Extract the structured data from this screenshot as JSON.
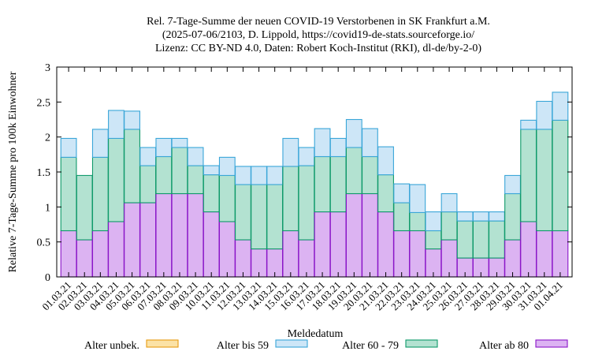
{
  "chart_data": {
    "type": "bar",
    "stacked": true,
    "title_lines": [
      "Rel. 7-Tage-Summe der neuen COVID-19 Verstorbenen in SK Frankfurt a.M.",
      "(2025-07-06/2103, D. Lippold, https://covid19-de-stats.sourceforge.io/",
      "Lizenz: CC BY-ND 4.0, Daten: Robert Koch-Institut (RKI), dl-de/by-2-0)"
    ],
    "xlabel": "Meldedatum",
    "ylabel": "Relative 7-Tage-Summe pro 100k Einwohner",
    "ylim": [
      0,
      3
    ],
    "yticks": [
      "0",
      "0.5",
      "1",
      "1.5",
      "2",
      "2.5",
      "3"
    ],
    "grid": false,
    "legend_position": "bottom",
    "categories": [
      "01.03.21",
      "02.03.21",
      "03.03.21",
      "04.03.21",
      "05.03.21",
      "06.03.21",
      "07.03.21",
      "08.03.21",
      "09.03.21",
      "10.03.21",
      "11.03.21",
      "12.03.21",
      "13.03.21",
      "14.03.21",
      "15.03.21",
      "16.03.21",
      "17.03.21",
      "18.03.21",
      "19.03.21",
      "20.03.21",
      "21.03.21",
      "22.03.21",
      "23.03.21",
      "24.03.21",
      "25.03.21",
      "26.03.21",
      "27.03.21",
      "28.03.21",
      "29.03.21",
      "30.03.21",
      "31.03.21",
      "01.04.21"
    ],
    "series": [
      {
        "name": "Alter ab 80",
        "fill": "#dcb3f2",
        "stroke": "#8a15c8",
        "values": [
          0.66,
          0.53,
          0.66,
          0.79,
          1.06,
          1.06,
          1.19,
          1.19,
          1.19,
          0.93,
          0.79,
          0.53,
          0.4,
          0.4,
          0.66,
          0.53,
          0.93,
          0.93,
          1.19,
          1.19,
          0.93,
          0.66,
          0.66,
          0.4,
          0.53,
          0.27,
          0.27,
          0.27,
          0.53,
          0.79,
          0.66,
          0.66
        ]
      },
      {
        "name": "Alter 60 - 79",
        "fill": "#b3e2d1",
        "stroke": "#0f9a6a",
        "values": [
          1.05,
          0.92,
          1.05,
          1.19,
          1.05,
          0.53,
          0.53,
          0.66,
          0.4,
          0.53,
          0.66,
          0.79,
          0.92,
          0.92,
          0.92,
          1.06,
          0.79,
          0.79,
          0.66,
          0.53,
          0.53,
          0.4,
          0.26,
          0.26,
          0.4,
          0.53,
          0.53,
          0.53,
          0.66,
          1.32,
          1.45,
          1.58
        ]
      },
      {
        "name": "Alter bis 59",
        "fill": "#cde6f7",
        "stroke": "#3aa6d8",
        "values": [
          0.27,
          0.0,
          0.4,
          0.4,
          0.26,
          0.26,
          0.26,
          0.13,
          0.26,
          0.13,
          0.26,
          0.26,
          0.26,
          0.26,
          0.4,
          0.26,
          0.4,
          0.26,
          0.4,
          0.4,
          0.4,
          0.27,
          0.4,
          0.27,
          0.26,
          0.13,
          0.13,
          0.13,
          0.26,
          0.13,
          0.4,
          0.4
        ]
      },
      {
        "name": "Alter unbek.",
        "fill": "#fbe2a6",
        "stroke": "#e69c12",
        "values": [
          0,
          0,
          0,
          0,
          0,
          0,
          0,
          0,
          0,
          0,
          0,
          0,
          0,
          0,
          0,
          0,
          0,
          0,
          0,
          0,
          0,
          0,
          0,
          0,
          0,
          0,
          0,
          0,
          0,
          0,
          0,
          0
        ]
      }
    ],
    "legend": [
      {
        "name": "Alter unbek.",
        "fill": "#fbe2a6",
        "stroke": "#e69c12"
      },
      {
        "name": "Alter bis 59",
        "fill": "#cde6f7",
        "stroke": "#3aa6d8"
      },
      {
        "name": "Alter 60 - 79",
        "fill": "#b3e2d1",
        "stroke": "#0f9a6a"
      },
      {
        "name": "Alter ab 80",
        "fill": "#dcb3f2",
        "stroke": "#8a15c8"
      }
    ]
  }
}
